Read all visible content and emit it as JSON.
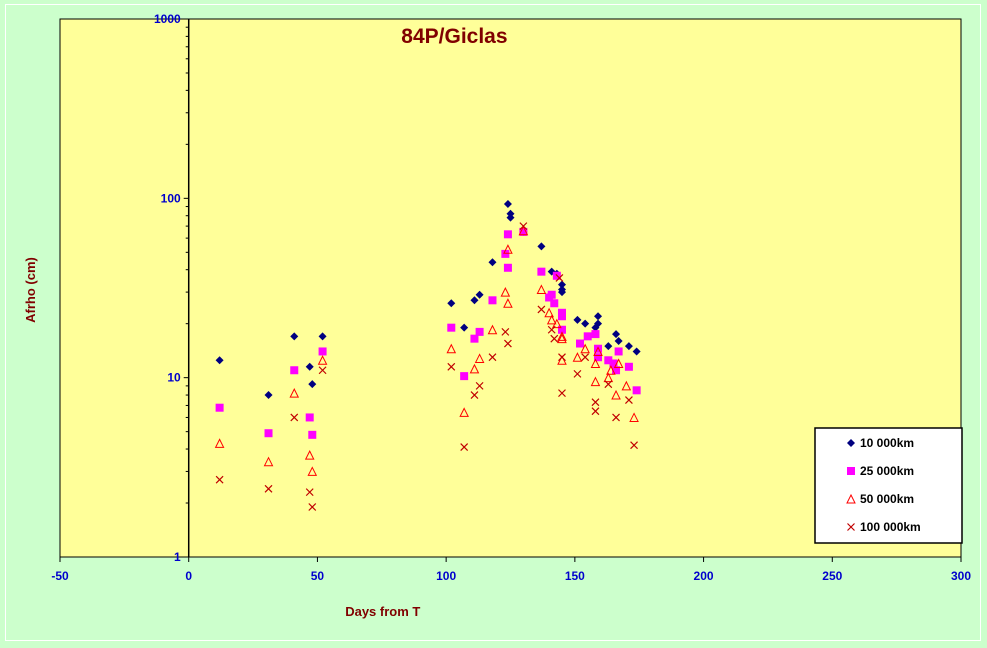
{
  "chart_data": {
    "type": "scatter",
    "title": "84P/Giclas",
    "xlabel": "Days from  T",
    "ylabel": "Afrho (cm)",
    "xlim": [
      -50,
      300
    ],
    "ylim": [
      1,
      1000
    ],
    "yscale": "log",
    "x_ticks": [
      -50,
      0,
      50,
      100,
      150,
      200,
      250,
      300
    ],
    "y_ticks": [
      1,
      10,
      100,
      1000
    ],
    "grid": false,
    "legend_position": "bottom-right",
    "colors": {
      "page_background": "#ccffcc",
      "plot_background": "#ffff99",
      "title": "#800000",
      "ticks": "#0000cc"
    },
    "series": [
      {
        "name": "10 000km",
        "marker": "diamond",
        "color": "#000080",
        "points": [
          [
            12,
            12.5
          ],
          [
            31,
            8.0
          ],
          [
            41,
            17
          ],
          [
            47,
            11.5
          ],
          [
            48,
            9.2
          ],
          [
            52,
            17
          ],
          [
            102,
            26
          ],
          [
            107,
            19
          ],
          [
            111,
            27
          ],
          [
            113,
            29
          ],
          [
            118,
            44
          ],
          [
            124,
            93
          ],
          [
            125,
            82
          ],
          [
            125,
            78
          ],
          [
            130,
            65
          ],
          [
            137,
            54
          ],
          [
            141,
            39
          ],
          [
            143,
            38
          ],
          [
            145,
            33
          ],
          [
            145,
            31
          ],
          [
            145,
            30
          ],
          [
            151,
            21
          ],
          [
            154,
            20
          ],
          [
            158,
            19
          ],
          [
            159,
            22
          ],
          [
            159,
            20
          ],
          [
            163,
            15
          ],
          [
            166,
            17.5
          ],
          [
            167,
            16
          ],
          [
            171,
            15
          ],
          [
            174,
            14
          ]
        ]
      },
      {
        "name": "25 000km",
        "marker": "square",
        "color": "#ff00ff",
        "points": [
          [
            12,
            6.8
          ],
          [
            31,
            4.9
          ],
          [
            41,
            11
          ],
          [
            47,
            6.0
          ],
          [
            48,
            4.8
          ],
          [
            52,
            14
          ],
          [
            102,
            19
          ],
          [
            107,
            10.2
          ],
          [
            111,
            16.5
          ],
          [
            113,
            18
          ],
          [
            118,
            27
          ],
          [
            123,
            49
          ],
          [
            124,
            63
          ],
          [
            124,
            41
          ],
          [
            130,
            65
          ],
          [
            137,
            39
          ],
          [
            140,
            28
          ],
          [
            141,
            29
          ],
          [
            142,
            26
          ],
          [
            143,
            37
          ],
          [
            145,
            23
          ],
          [
            145,
            22
          ],
          [
            145,
            18.5
          ],
          [
            152,
            15.5
          ],
          [
            155,
            17
          ],
          [
            158,
            17.5
          ],
          [
            159,
            14.5
          ],
          [
            159,
            13
          ],
          [
            163,
            12.5
          ],
          [
            165,
            12
          ],
          [
            166,
            11
          ],
          [
            167,
            14
          ],
          [
            171,
            11.5
          ],
          [
            174,
            8.5
          ]
        ]
      },
      {
        "name": "50 000km",
        "marker": "triangle",
        "color": "#ff0000",
        "points": [
          [
            12,
            4.3
          ],
          [
            31,
            3.4
          ],
          [
            41,
            8.2
          ],
          [
            47,
            3.7
          ],
          [
            48,
            3.0
          ],
          [
            52,
            12.5
          ],
          [
            102,
            14.5
          ],
          [
            107,
            6.4
          ],
          [
            111,
            11.2
          ],
          [
            113,
            12.8
          ],
          [
            118,
            18.5
          ],
          [
            123,
            30
          ],
          [
            124,
            26
          ],
          [
            124,
            52
          ],
          [
            130,
            66
          ],
          [
            137,
            31
          ],
          [
            140,
            23
          ],
          [
            141,
            21
          ],
          [
            143,
            20
          ],
          [
            145,
            17
          ],
          [
            145,
            16.5
          ],
          [
            145,
            12.5
          ],
          [
            151,
            13
          ],
          [
            154,
            14.5
          ],
          [
            158,
            9.5
          ],
          [
            158,
            12
          ],
          [
            159,
            14
          ],
          [
            163,
            10
          ],
          [
            164,
            11
          ],
          [
            166,
            8
          ],
          [
            167,
            12
          ],
          [
            170,
            9
          ],
          [
            173,
            6
          ]
        ]
      },
      {
        "name": "100 000km",
        "marker": "x",
        "color": "#c00000",
        "points": [
          [
            12,
            2.7
          ],
          [
            31,
            2.4
          ],
          [
            41,
            6.0
          ],
          [
            47,
            2.3
          ],
          [
            48,
            1.9
          ],
          [
            52,
            11
          ],
          [
            102,
            11.5
          ],
          [
            107,
            4.1
          ],
          [
            111,
            8.0
          ],
          [
            113,
            9.0
          ],
          [
            118,
            13
          ],
          [
            123,
            18
          ],
          [
            124,
            15.5
          ],
          [
            130,
            70
          ],
          [
            137,
            24
          ],
          [
            141,
            18.5
          ],
          [
            142,
            16.5
          ],
          [
            144,
            36
          ],
          [
            145,
            13
          ],
          [
            145,
            8.2
          ],
          [
            151,
            10.5
          ],
          [
            154,
            13
          ],
          [
            158,
            6.5
          ],
          [
            158,
            7.3
          ],
          [
            163,
            9.2
          ],
          [
            166,
            6.0
          ],
          [
            171,
            7.5
          ],
          [
            173,
            4.2
          ]
        ]
      }
    ]
  }
}
